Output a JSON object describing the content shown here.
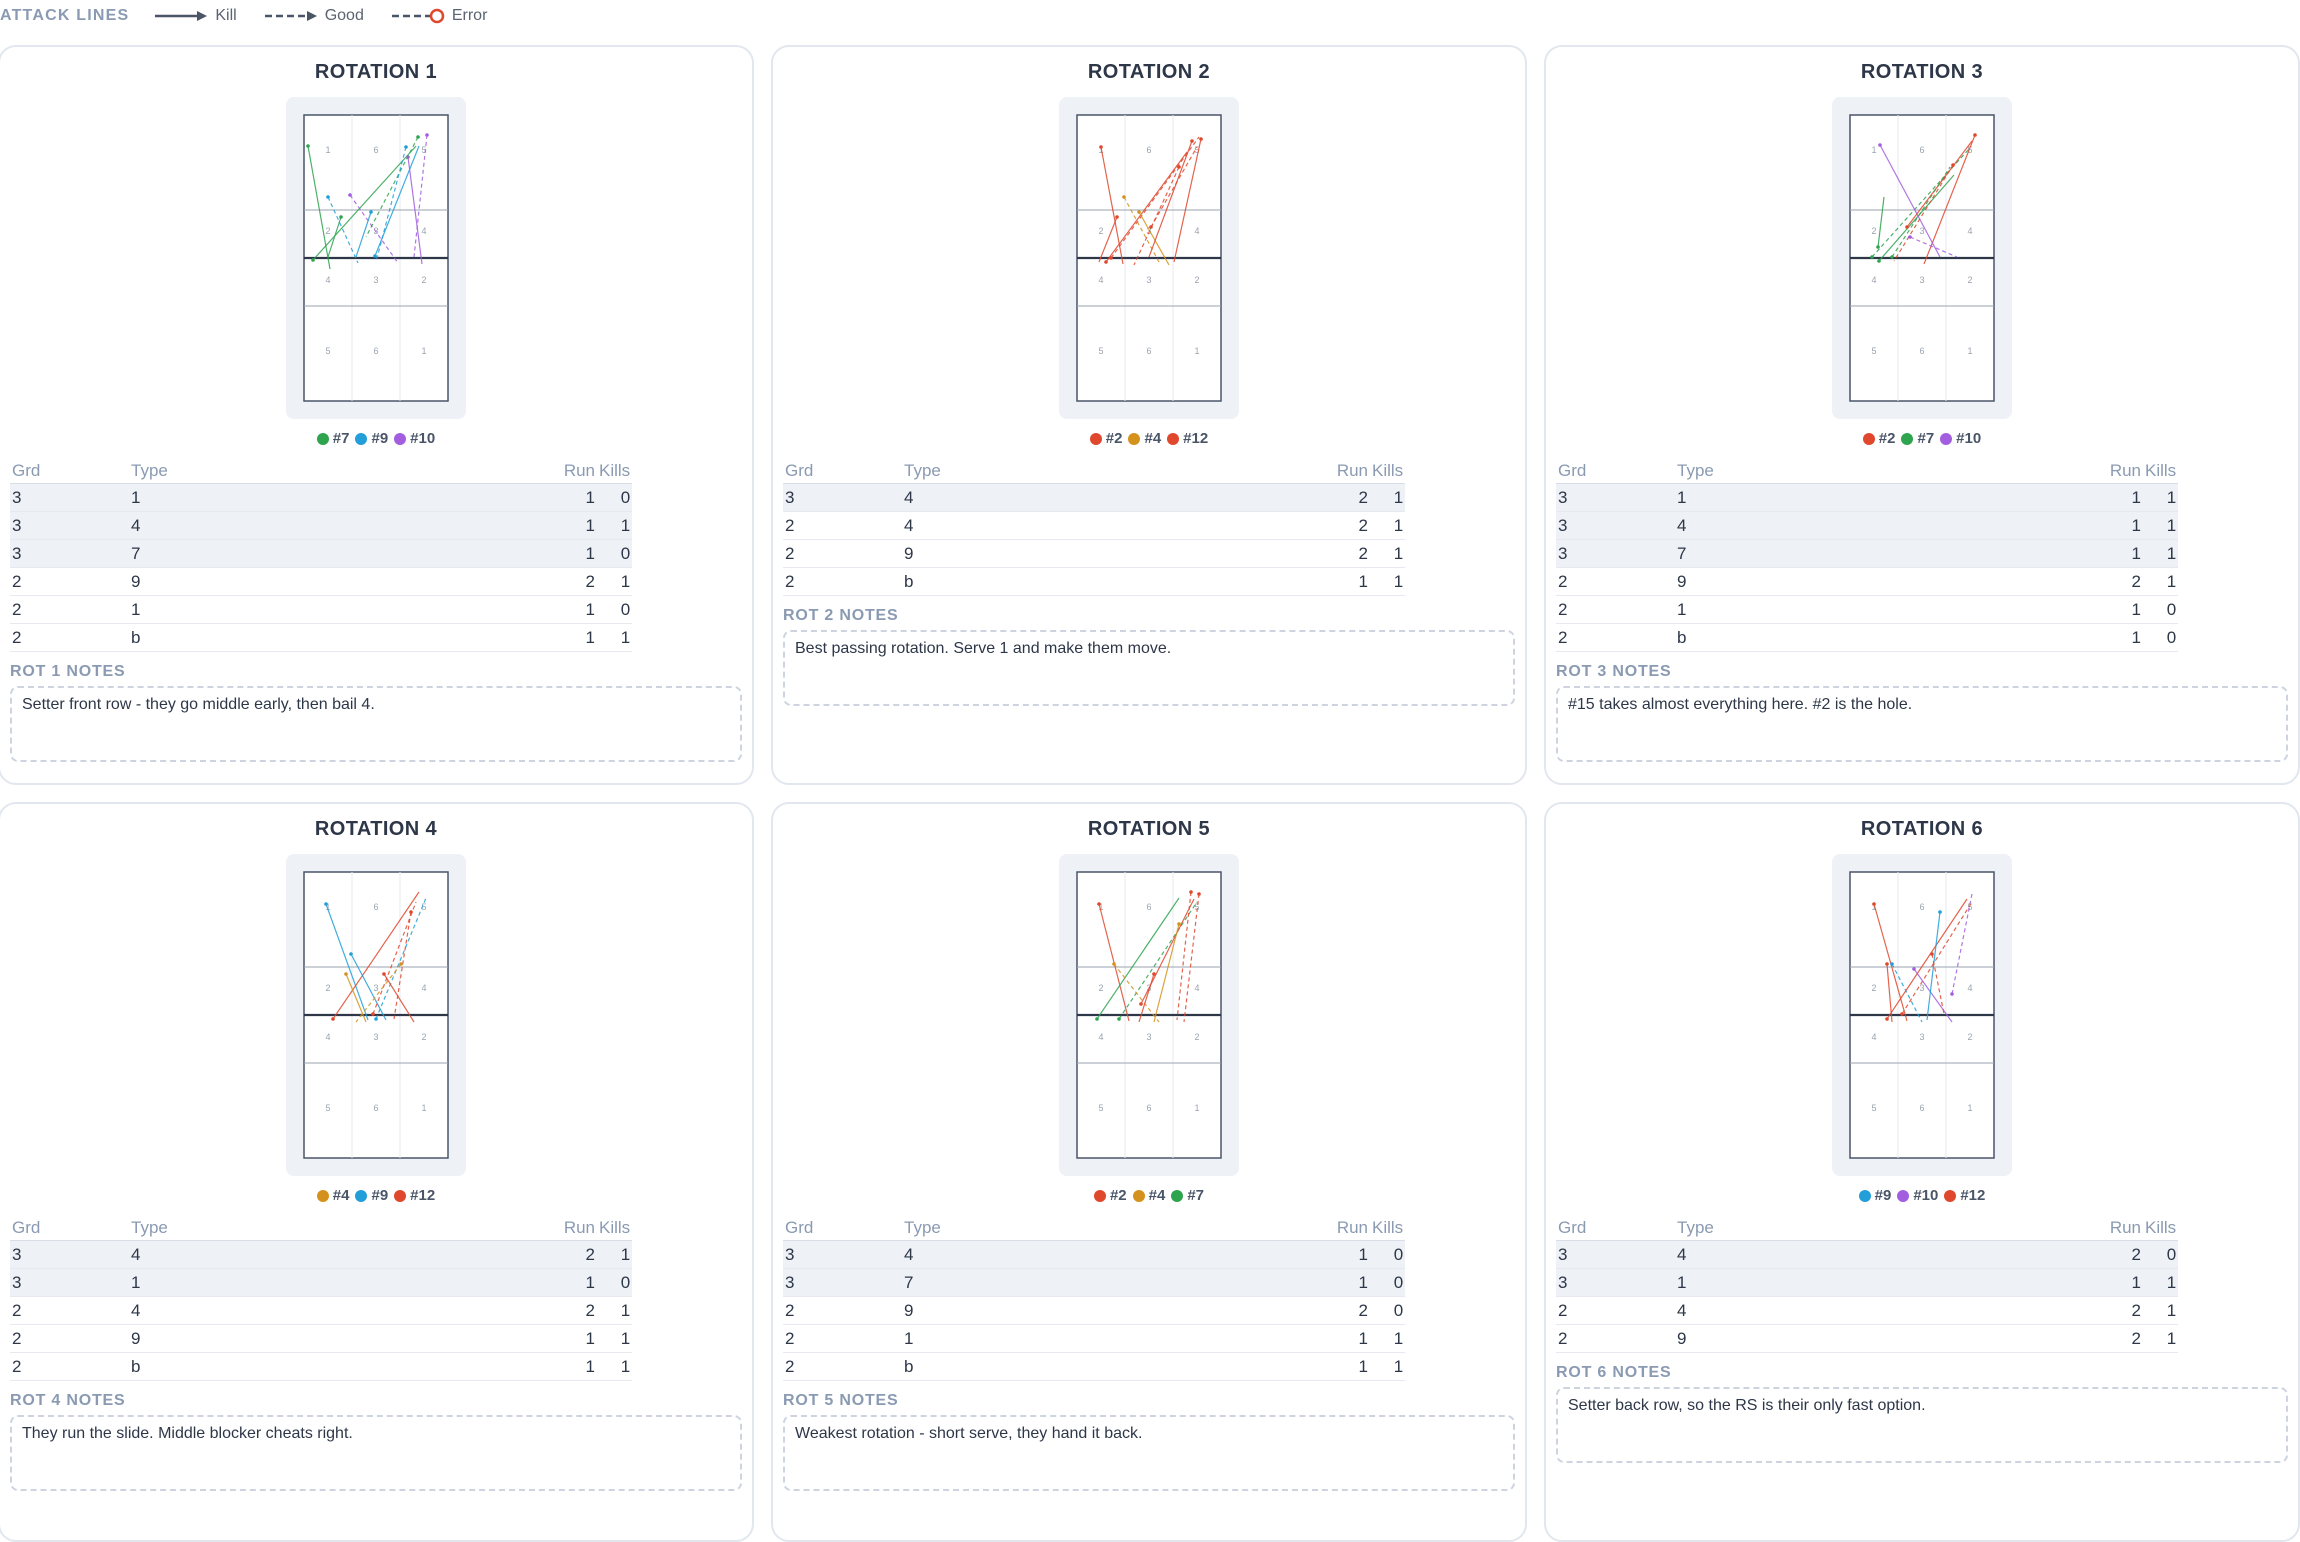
{
  "legend": {
    "title": "ATTACK LINES",
    "items": [
      {
        "label": "Kill",
        "style": "kill"
      },
      {
        "label": "Good",
        "style": "good"
      },
      {
        "label": "Error",
        "style": "error"
      }
    ]
  },
  "court_zone_labels": {
    "back": [
      "5",
      "6",
      "1"
    ],
    "front": [
      "4",
      "3",
      "2"
    ],
    "opp_front": [
      "2",
      "3",
      "4"
    ],
    "opp_back": [
      "1",
      "6",
      "5"
    ]
  },
  "table_headers": {
    "grd": "Grd",
    "type": "Type",
    "run": "Run",
    "kills": "Kills"
  },
  "player_colors": {
    "#2": "#e0482e",
    "#4": "#d4921c",
    "#7": "#2ea44f",
    "#9": "#229fd8",
    "#10": "#a35ee0",
    "#12": "#e0482e"
  },
  "rotations": [
    {
      "title": "ROTATION 1",
      "players": [
        {
          "label": "#7",
          "color": "#2ea44f"
        },
        {
          "label": "#9",
          "color": "#229fd8"
        },
        {
          "label": "#10",
          "color": "#a35ee0"
        }
      ],
      "rows": [
        {
          "grd": "3",
          "type": "1",
          "run": "1",
          "kills": "0",
          "hl": true
        },
        {
          "grd": "3",
          "type": "4",
          "run": "1",
          "kills": "1",
          "hl": true
        },
        {
          "grd": "3",
          "type": "7",
          "run": "1",
          "kills": "0",
          "hl": true
        },
        {
          "grd": "2",
          "type": "9",
          "run": "2",
          "kills": "1",
          "hl": false
        },
        {
          "grd": "2",
          "type": "1",
          "run": "1",
          "kills": "0",
          "hl": false
        },
        {
          "grd": "2",
          "type": "b",
          "run": "1",
          "kills": "1",
          "hl": false
        }
      ],
      "notes_title": "ROT 1 NOTES",
      "notes": "Setter front row - they go middle early, then bail 4."
    },
    {
      "title": "ROTATION 2",
      "players": [
        {
          "label": "#2",
          "color": "#e0482e"
        },
        {
          "label": "#4",
          "color": "#d4921c"
        },
        {
          "label": "#12",
          "color": "#e0482e"
        }
      ],
      "rows": [
        {
          "grd": "3",
          "type": "4",
          "run": "2",
          "kills": "1",
          "hl": true
        },
        {
          "grd": "2",
          "type": "4",
          "run": "2",
          "kills": "1",
          "hl": false
        },
        {
          "grd": "2",
          "type": "9",
          "run": "2",
          "kills": "1",
          "hl": false
        },
        {
          "grd": "2",
          "type": "b",
          "run": "1",
          "kills": "1",
          "hl": false
        }
      ],
      "notes_title": "ROT 2 NOTES",
      "notes": "Best passing rotation. Serve 1 and make them move."
    },
    {
      "title": "ROTATION 3",
      "players": [
        {
          "label": "#2",
          "color": "#e0482e"
        },
        {
          "label": "#7",
          "color": "#2ea44f"
        },
        {
          "label": "#10",
          "color": "#a35ee0"
        }
      ],
      "rows": [
        {
          "grd": "3",
          "type": "1",
          "run": "1",
          "kills": "1",
          "hl": true
        },
        {
          "grd": "3",
          "type": "4",
          "run": "1",
          "kills": "1",
          "hl": true
        },
        {
          "grd": "3",
          "type": "7",
          "run": "1",
          "kills": "1",
          "hl": true
        },
        {
          "grd": "2",
          "type": "9",
          "run": "2",
          "kills": "1",
          "hl": false
        },
        {
          "grd": "2",
          "type": "1",
          "run": "1",
          "kills": "0",
          "hl": false
        },
        {
          "grd": "2",
          "type": "b",
          "run": "1",
          "kills": "0",
          "hl": false
        }
      ],
      "notes_title": "ROT 3 NOTES",
      "notes": "#15 takes almost everything here. #2 is the hole."
    },
    {
      "title": "ROTATION 4",
      "players": [
        {
          "label": "#4",
          "color": "#d4921c"
        },
        {
          "label": "#9",
          "color": "#229fd8"
        },
        {
          "label": "#12",
          "color": "#e0482e"
        }
      ],
      "rows": [
        {
          "grd": "3",
          "type": "4",
          "run": "2",
          "kills": "1",
          "hl": true
        },
        {
          "grd": "3",
          "type": "1",
          "run": "1",
          "kills": "0",
          "hl": true
        },
        {
          "grd": "2",
          "type": "4",
          "run": "2",
          "kills": "1",
          "hl": false
        },
        {
          "grd": "2",
          "type": "9",
          "run": "1",
          "kills": "1",
          "hl": false
        },
        {
          "grd": "2",
          "type": "b",
          "run": "1",
          "kills": "1",
          "hl": false
        }
      ],
      "notes_title": "ROT 4 NOTES",
      "notes": "They run the slide. Middle blocker cheats right."
    },
    {
      "title": "ROTATION 5",
      "players": [
        {
          "label": "#2",
          "color": "#e0482e"
        },
        {
          "label": "#4",
          "color": "#d4921c"
        },
        {
          "label": "#7",
          "color": "#2ea44f"
        }
      ],
      "rows": [
        {
          "grd": "3",
          "type": "4",
          "run": "1",
          "kills": "0",
          "hl": true
        },
        {
          "grd": "3",
          "type": "7",
          "run": "1",
          "kills": "0",
          "hl": true
        },
        {
          "grd": "2",
          "type": "9",
          "run": "2",
          "kills": "0",
          "hl": false
        },
        {
          "grd": "2",
          "type": "1",
          "run": "1",
          "kills": "1",
          "hl": false
        },
        {
          "grd": "2",
          "type": "b",
          "run": "1",
          "kills": "1",
          "hl": false
        }
      ],
      "notes_title": "ROT 5 NOTES",
      "notes": "Weakest rotation - short serve, they hand it back."
    },
    {
      "title": "ROTATION 6",
      "players": [
        {
          "label": "#9",
          "color": "#229fd8"
        },
        {
          "label": "#10",
          "color": "#a35ee0"
        },
        {
          "label": "#12",
          "color": "#e0482e"
        }
      ],
      "rows": [
        {
          "grd": "3",
          "type": "4",
          "run": "2",
          "kills": "0",
          "hl": true
        },
        {
          "grd": "3",
          "type": "1",
          "run": "1",
          "kills": "1",
          "hl": true
        },
        {
          "grd": "2",
          "type": "4",
          "run": "2",
          "kills": "1",
          "hl": false
        },
        {
          "grd": "2",
          "type": "9",
          "run": "2",
          "kills": "1",
          "hl": false
        }
      ],
      "notes_title": "ROT 6 NOTES",
      "notes": "Setter back row, so the RS is their only fast option."
    }
  ]
}
